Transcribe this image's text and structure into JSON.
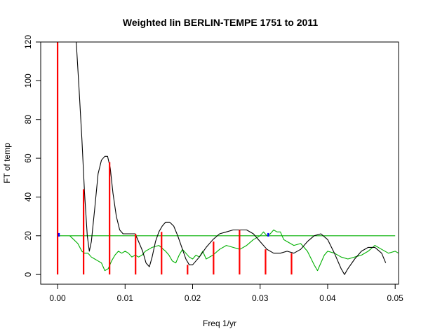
{
  "chart_data": {
    "type": "line",
    "title": "Weighted lin BERLIN-TEMPE 1751 to 2011",
    "xlabel": "Freq 1/yr",
    "ylabel": "FT of temp",
    "xlim": [
      -0.0025,
      0.0505
    ],
    "ylim": [
      -5,
      120
    ],
    "x_ticks": [
      0.0,
      0.01,
      0.02,
      0.03,
      0.04,
      0.05
    ],
    "x_tick_labels": [
      "0.00",
      "0.01",
      "0.02",
      "0.03",
      "0.04",
      "0.05"
    ],
    "y_ticks": [
      0,
      20,
      40,
      60,
      80,
      100,
      120
    ],
    "y_tick_labels": [
      "0",
      "20",
      "40",
      "60",
      "80",
      "100",
      "120"
    ],
    "grid": false,
    "colors": {
      "fourier": "#000000",
      "noise": "#00b000",
      "threshold": "#00b000",
      "harmonics": "#ff0000",
      "markers": "#0000ff"
    },
    "series": [
      {
        "id": "fourier",
        "style": "line",
        "x": [
          0.0026,
          0.0028,
          0.0032,
          0.0036,
          0.004,
          0.0044,
          0.0047,
          0.005,
          0.0055,
          0.006,
          0.0065,
          0.007,
          0.0074,
          0.0078,
          0.0082,
          0.0087,
          0.0092,
          0.0097,
          0.0102,
          0.0108,
          0.0115,
          0.012,
          0.0126,
          0.0131,
          0.0136,
          0.014,
          0.0145,
          0.015,
          0.0155,
          0.016,
          0.0166,
          0.0172,
          0.0178,
          0.0184,
          0.019,
          0.0195,
          0.02,
          0.021,
          0.022,
          0.023,
          0.024,
          0.025,
          0.026,
          0.027,
          0.028,
          0.029,
          0.03,
          0.031,
          0.032,
          0.033,
          0.034,
          0.035,
          0.036,
          0.037,
          0.038,
          0.039,
          0.04,
          0.041,
          0.042,
          0.0425,
          0.043,
          0.044,
          0.045,
          0.046,
          0.047,
          0.048,
          0.0486
        ],
        "y": [
          125,
          118,
          95,
          70,
          42,
          20,
          12,
          17,
          34,
          52,
          59,
          61,
          61,
          55,
          42,
          30,
          23,
          21,
          21,
          21,
          21,
          17,
          12,
          6,
          4,
          9,
          17,
          22,
          25,
          27,
          27,
          25,
          20,
          14,
          8,
          5,
          5,
          9,
          14,
          18,
          21,
          22,
          23,
          23,
          23,
          21,
          17,
          13,
          11,
          11,
          12,
          11,
          13,
          17,
          20,
          21,
          18,
          11,
          3,
          0,
          3,
          8,
          12,
          14,
          14,
          11,
          6
        ]
      },
      {
        "id": "noise",
        "style": "line",
        "x": [
          0.0018,
          0.0024,
          0.003,
          0.0036,
          0.004,
          0.0045,
          0.005,
          0.0055,
          0.006,
          0.0065,
          0.007,
          0.0075,
          0.008,
          0.0085,
          0.009,
          0.0095,
          0.01,
          0.0105,
          0.011,
          0.0115,
          0.012,
          0.0125,
          0.013,
          0.0135,
          0.014,
          0.015,
          0.016,
          0.0165,
          0.017,
          0.0175,
          0.018,
          0.0185,
          0.019,
          0.0195,
          0.02,
          0.0205,
          0.021,
          0.0215,
          0.022,
          0.023,
          0.024,
          0.025,
          0.026,
          0.027,
          0.028,
          0.029,
          0.03,
          0.0305,
          0.031,
          0.0315,
          0.032,
          0.0325,
          0.033,
          0.0335,
          0.034,
          0.035,
          0.036,
          0.037,
          0.038,
          0.0385,
          0.039,
          0.0395,
          0.04,
          0.041,
          0.042,
          0.043,
          0.044,
          0.045,
          0.046,
          0.047,
          0.048,
          0.049,
          0.05,
          0.0505
        ],
        "y": [
          20,
          18,
          16,
          12,
          11,
          11,
          9,
          8,
          7,
          6,
          2,
          3,
          7,
          10,
          12,
          11,
          12,
          11,
          9,
          10,
          9,
          10,
          12,
          13,
          14,
          15,
          12,
          10,
          7,
          6,
          10,
          13,
          11,
          9,
          8,
          10,
          9,
          12,
          8,
          10,
          13,
          15,
          14,
          13,
          15,
          18,
          20,
          22,
          20,
          21,
          23,
          22,
          22,
          18,
          17,
          15,
          16,
          12,
          5,
          2,
          6,
          10,
          12,
          11,
          9,
          8,
          9,
          10,
          12,
          15,
          13,
          11,
          12,
          11
        ]
      },
      {
        "id": "threshold",
        "style": "line",
        "x": [
          0.0,
          0.05
        ],
        "y": [
          20,
          20
        ]
      },
      {
        "id": "harmonics",
        "style": "spikes",
        "x": [
          0.0,
          0.00385,
          0.0077,
          0.01155,
          0.0154,
          0.01925,
          0.0231,
          0.02695,
          0.0308,
          0.03465
        ],
        "y": [
          120,
          44,
          58,
          21,
          22,
          5,
          17,
          23,
          13,
          11
        ]
      },
      {
        "id": "markers",
        "style": "points",
        "x": [
          0.0002,
          0.0312
        ],
        "y": [
          20.5,
          20.5
        ]
      }
    ]
  }
}
